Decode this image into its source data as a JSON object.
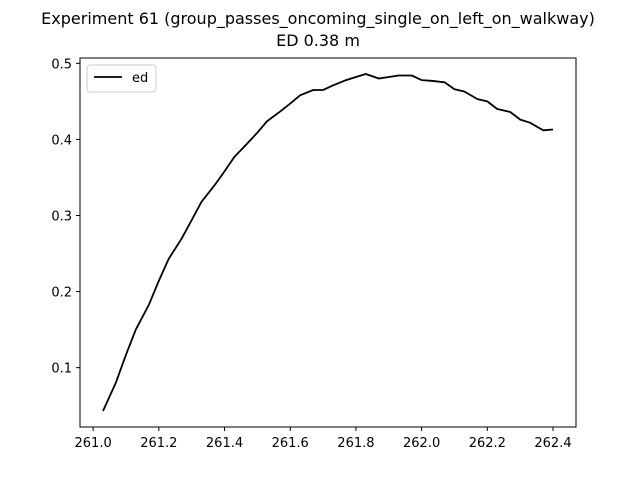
{
  "chart_data": {
    "type": "line",
    "title": "Experiment 61 (group_passes_oncoming_single_on_left_on_walkway)",
    "subtitle": "ED 0.38 m",
    "xlabel": "",
    "ylabel": "",
    "xlim": [
      260.96,
      262.47
    ],
    "ylim": [
      0.022,
      0.507
    ],
    "xticks": [
      261.0,
      261.2,
      261.4,
      261.6,
      261.8,
      262.0,
      262.2,
      262.4
    ],
    "xtick_labels": [
      "261.0",
      "261.2",
      "261.4",
      "261.6",
      "261.8",
      "262.0",
      "262.2",
      "262.4"
    ],
    "yticks": [
      0.1,
      0.2,
      0.3,
      0.4,
      0.5
    ],
    "ytick_labels": [
      "0.1",
      "0.2",
      "0.3",
      "0.4",
      "0.5"
    ],
    "grid": false,
    "legend": {
      "position": "top-left"
    },
    "series": [
      {
        "name": "ed",
        "color": "#000000",
        "x": [
          261.03,
          261.07,
          261.1,
          261.13,
          261.17,
          261.2,
          261.23,
          261.27,
          261.3,
          261.33,
          261.37,
          261.4,
          261.43,
          261.47,
          261.5,
          261.53,
          261.57,
          261.6,
          261.63,
          261.67,
          261.7,
          261.73,
          261.77,
          261.8,
          261.83,
          261.87,
          261.9,
          261.93,
          261.97,
          262.0,
          262.03,
          262.07,
          262.1,
          262.13,
          262.17,
          262.2,
          262.23,
          262.27,
          262.3,
          262.33,
          262.37,
          262.4
        ],
        "values": [
          0.043,
          0.081,
          0.117,
          0.15,
          0.183,
          0.214,
          0.243,
          0.27,
          0.294,
          0.318,
          0.34,
          0.358,
          0.377,
          0.395,
          0.409,
          0.424,
          0.437,
          0.447,
          0.458,
          0.465,
          0.465,
          0.471,
          0.478,
          0.482,
          0.486,
          0.48,
          0.482,
          0.484,
          0.484,
          0.478,
          0.477,
          0.475,
          0.466,
          0.463,
          0.453,
          0.45,
          0.44,
          0.436,
          0.426,
          0.422,
          0.412,
          0.413
        ]
      }
    ]
  }
}
